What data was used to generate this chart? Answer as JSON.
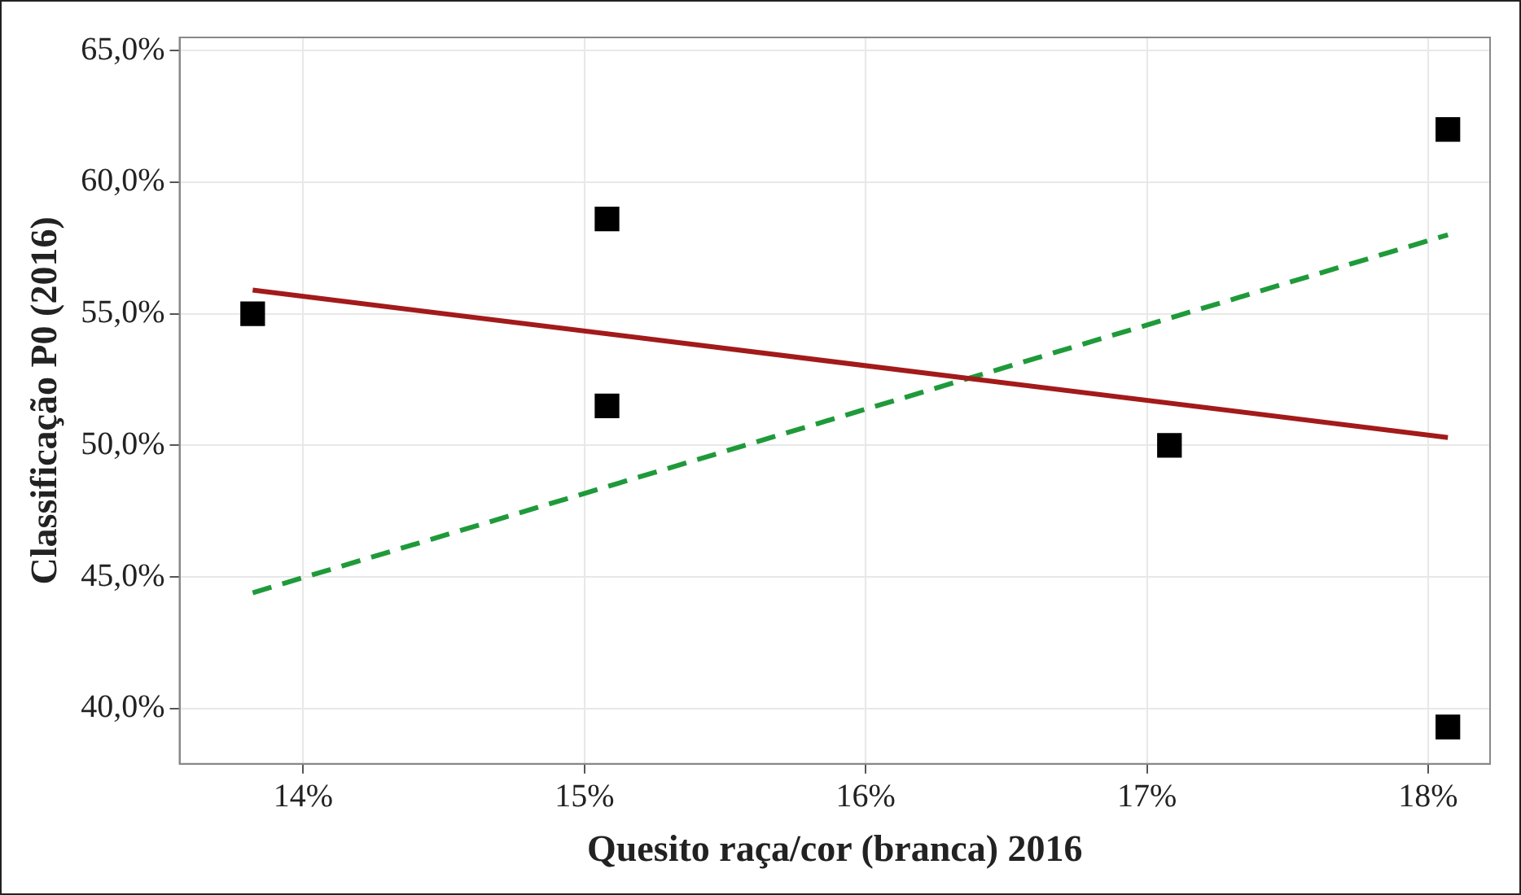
{
  "chart_data": {
    "type": "scatter",
    "xlabel": "Quesito raça/cor (branca) 2016",
    "ylabel": "Classificação P0 (2016)",
    "xlim": [
      13.56,
      18.22
    ],
    "xticks": [
      {
        "value": 14,
        "label": "14%"
      },
      {
        "value": 15,
        "label": "15%"
      },
      {
        "value": 16,
        "label": "16%"
      },
      {
        "value": 17,
        "label": "17%"
      },
      {
        "value": 18,
        "label": "18%"
      }
    ],
    "ylim": [
      37.9,
      65.5
    ],
    "yticks": [
      {
        "value": 40,
        "label": "40,0%"
      },
      {
        "value": 45,
        "label": "45,0%"
      },
      {
        "value": 50,
        "label": "50,0%"
      },
      {
        "value": 55,
        "label": "55,0%"
      },
      {
        "value": 60,
        "label": "60,0%"
      },
      {
        "value": 65,
        "label": "65,0%"
      }
    ],
    "grid": true,
    "legend": false,
    "series": [
      {
        "type": "scatter",
        "color": "#000000",
        "marker": "square",
        "x": [
          13.82,
          15.08,
          15.08,
          17.08,
          18.07,
          18.07
        ],
        "values": [
          55.0,
          58.6,
          51.5,
          50.0,
          62.0,
          39.3
        ]
      },
      {
        "type": "line",
        "color": "#a31a1a",
        "marker": "none",
        "line_style": "solid",
        "x": [
          13.82,
          18.07
        ],
        "values": [
          55.9,
          50.3
        ]
      },
      {
        "type": "line",
        "color": "#1f9a3a",
        "marker": "none",
        "line_style": "dashed",
        "x": [
          13.82,
          18.07
        ],
        "values": [
          44.4,
          58.0
        ]
      }
    ]
  }
}
